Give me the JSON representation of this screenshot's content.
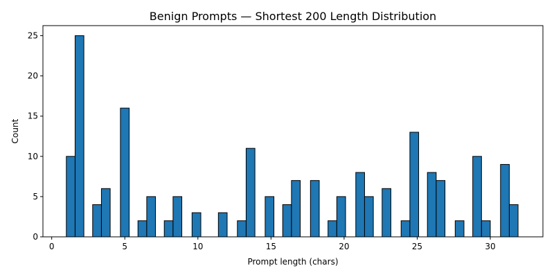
{
  "chart_data": {
    "type": "bar",
    "title": "Benign Prompts — Shortest 200 Length Distribution",
    "xlabel": "Prompt length (chars)",
    "ylabel": "Count",
    "xlim": [
      -0.6,
      33.6
    ],
    "ylim": [
      0,
      26.25
    ],
    "xticks": [
      0,
      5,
      10,
      15,
      20,
      25,
      30
    ],
    "yticks": [
      0,
      5,
      10,
      15,
      20,
      25
    ],
    "grid": false,
    "bar_color": "#1f77b4",
    "edge_color": "#000000",
    "bin_width": 0.6,
    "bins": [
      {
        "x": 1.3,
        "value": 10
      },
      {
        "x": 1.9,
        "value": 25
      },
      {
        "x": 3.1,
        "value": 4
      },
      {
        "x": 3.7,
        "value": 6
      },
      {
        "x": 5.0,
        "value": 16
      },
      {
        "x": 6.2,
        "value": 2
      },
      {
        "x": 6.8,
        "value": 5
      },
      {
        "x": 8.0,
        "value": 2
      },
      {
        "x": 8.6,
        "value": 5
      },
      {
        "x": 9.9,
        "value": 3
      },
      {
        "x": 11.7,
        "value": 3
      },
      {
        "x": 13.0,
        "value": 2
      },
      {
        "x": 13.6,
        "value": 11
      },
      {
        "x": 14.9,
        "value": 5
      },
      {
        "x": 16.1,
        "value": 4
      },
      {
        "x": 16.7,
        "value": 7
      },
      {
        "x": 18.0,
        "value": 7
      },
      {
        "x": 19.2,
        "value": 2
      },
      {
        "x": 19.8,
        "value": 5
      },
      {
        "x": 21.1,
        "value": 8
      },
      {
        "x": 21.7,
        "value": 5
      },
      {
        "x": 22.9,
        "value": 6
      },
      {
        "x": 24.2,
        "value": 2
      },
      {
        "x": 24.8,
        "value": 13
      },
      {
        "x": 26.0,
        "value": 8
      },
      {
        "x": 26.6,
        "value": 7
      },
      {
        "x": 27.9,
        "value": 2
      },
      {
        "x": 29.1,
        "value": 10
      },
      {
        "x": 29.7,
        "value": 2
      },
      {
        "x": 31.0,
        "value": 9
      },
      {
        "x": 31.6,
        "value": 4
      }
    ]
  }
}
